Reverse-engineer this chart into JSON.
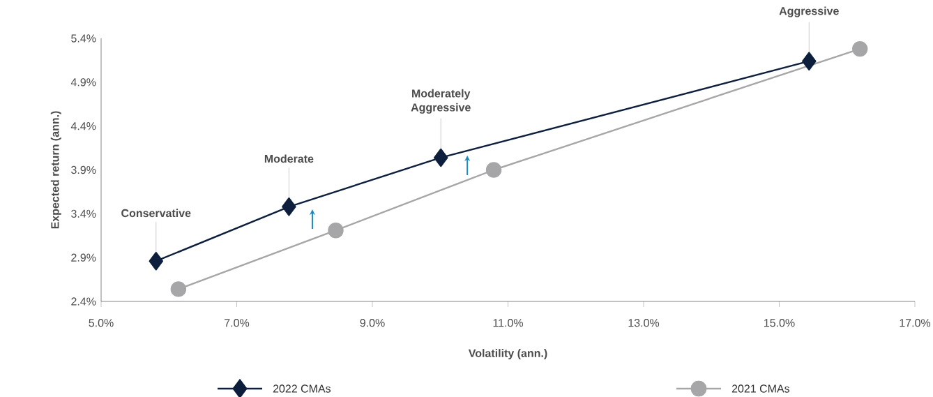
{
  "chart_data": {
    "type": "line",
    "xlabel": "Volatility (ann.)",
    "ylabel": "Expected return (ann.)",
    "xlim": [
      5.0,
      17.0
    ],
    "xticks": [
      {
        "value": 5,
        "label": "5.0%"
      },
      {
        "value": 7,
        "label": "7.0%"
      },
      {
        "value": 9,
        "label": "9.0%"
      },
      {
        "value": 11,
        "label": "11.0%"
      },
      {
        "value": 13,
        "label": "13.0%"
      },
      {
        "value": 15,
        "label": "15.0%"
      },
      {
        "value": 17,
        "label": "17.0%"
      }
    ],
    "ylim": [
      2.4,
      5.4
    ],
    "yticks": [
      {
        "value": 2.4,
        "label": "2.4%"
      },
      {
        "value": 2.9,
        "label": "2.9%"
      },
      {
        "value": 3.4,
        "label": "3.4%"
      },
      {
        "value": 3.9,
        "label": "3.9%"
      },
      {
        "value": 4.4,
        "label": "4.4%"
      },
      {
        "value": 4.9,
        "label": "4.9%"
      },
      {
        "value": 5.4,
        "label": "5.4%"
      }
    ],
    "series": [
      {
        "name": "2022 CMAs",
        "color": "#0d1f3c",
        "marker": "diamond",
        "x": [
          5.81,
          7.77,
          10.01,
          15.44
        ],
        "values": [
          2.86,
          3.48,
          4.04,
          5.14
        ]
      },
      {
        "name": "2021 CMAs",
        "color": "#a6a6a8",
        "marker": "circle",
        "x": [
          6.14,
          8.46,
          10.79,
          16.19
        ],
        "values": [
          2.54,
          3.21,
          3.9,
          5.28
        ]
      }
    ],
    "annotations": [
      {
        "text": "Conservative",
        "x": 5.81,
        "y": 2.86
      },
      {
        "text": "Moderate",
        "x": 7.77,
        "y": 3.48
      },
      {
        "text": "Moderately Aggressive",
        "x": 10.01,
        "y": 4.04
      },
      {
        "text": "Aggressive",
        "x": 15.44,
        "y": 5.14
      }
    ],
    "legend": "bottom",
    "grid": false
  }
}
